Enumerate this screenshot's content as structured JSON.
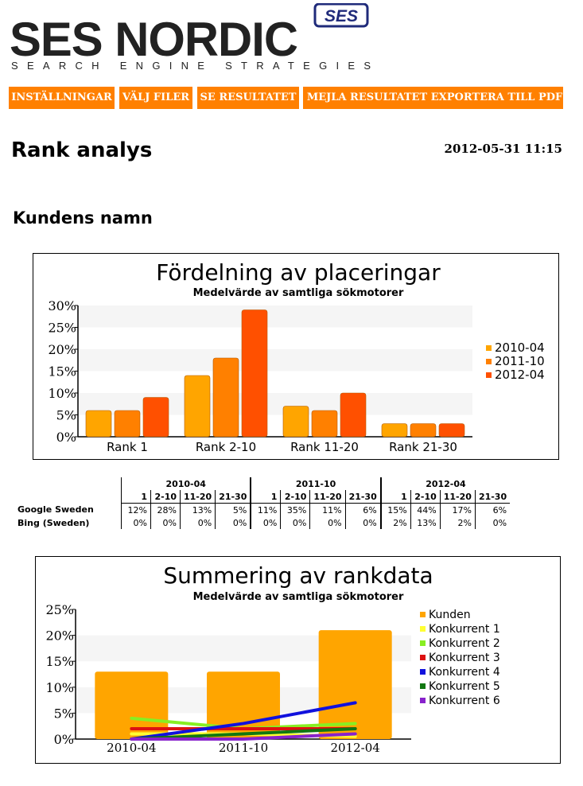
{
  "brand": {
    "name": "SES NORDIC",
    "tagline": "SEARCH ENGINE STRATEGIES",
    "badge": "SES",
    "dark_color": "#222222",
    "navy_color": "#1f2a7a"
  },
  "nav": {
    "color": "#ff8000",
    "items": [
      {
        "id": "settings",
        "label": "INSTÄLLNINGAR"
      },
      {
        "id": "select-files",
        "label": "VÄLJ FILER"
      },
      {
        "id": "view-result",
        "label": "SE RESULTATET"
      },
      {
        "id": "email-result",
        "label": "MEJLA RESULTATET"
      },
      {
        "id": "export-pdf",
        "label": "EXPORTERA TILL PDF"
      }
    ]
  },
  "page": {
    "title": "Rank analys",
    "timestamp": "2012-05-31 11:15",
    "customer_name": "Kundens namn"
  },
  "charts": {
    "distribution": {
      "type": "bar",
      "title": "Fördelning av placeringar",
      "subtitle": "Medelvärde av samtliga sökmotorer",
      "categories": [
        "Rank 1",
        "Rank 2-10",
        "Rank 11-20",
        "Rank 21-30"
      ],
      "series": [
        {
          "name": "2010-04",
          "color": "#ffa500",
          "values": [
            6,
            14,
            7,
            3
          ]
        },
        {
          "name": "2011-10",
          "color": "#ff8000",
          "values": [
            6,
            18,
            6,
            3
          ]
        },
        {
          "name": "2012-04",
          "color": "#ff5000",
          "values": [
            9,
            29,
            10,
            3
          ]
        }
      ],
      "yticks": [
        "0%",
        "5%",
        "10%",
        "15%",
        "20%",
        "25%",
        "30%"
      ],
      "ylim": [
        0,
        30
      ],
      "legend": "right"
    },
    "summary": {
      "type": "bar+line",
      "title": "Summering av rankdata",
      "subtitle": "Medelvärde av samtliga sökmotorer",
      "categories": [
        "2010-04",
        "2011-10",
        "2012-04"
      ],
      "bars": {
        "name": "Kunden",
        "color": "#ffa500",
        "values": [
          13,
          13,
          21
        ]
      },
      "lines": [
        {
          "name": "Konkurrent 1",
          "color": "#ffff33",
          "values": [
            1,
            1,
            0.5
          ]
        },
        {
          "name": "Konkurrent 2",
          "color": "#88ee22",
          "values": [
            4,
            2,
            3
          ]
        },
        {
          "name": "Konkurrent 3",
          "color": "#dd1111",
          "values": [
            2,
            2,
            2
          ]
        },
        {
          "name": "Konkurrent 4",
          "color": "#1111dd",
          "values": [
            0,
            3,
            7
          ]
        },
        {
          "name": "Konkurrent 5",
          "color": "#117711",
          "values": [
            0,
            1,
            2
          ]
        },
        {
          "name": "Konkurrent 6",
          "color": "#8822cc",
          "values": [
            0,
            0,
            1
          ]
        }
      ],
      "yticks": [
        "0%",
        "5%",
        "10%",
        "15%",
        "20%",
        "25%"
      ],
      "ylim": [
        0,
        25
      ],
      "legend": "right"
    }
  },
  "rank_table": {
    "periods": [
      "2010-04",
      "2011-10",
      "2012-04"
    ],
    "columns": [
      "1",
      "2-10",
      "11-20",
      "21-30"
    ],
    "rows": [
      {
        "engine": "Google Sweden",
        "values": [
          "12%",
          "28%",
          "13%",
          "5%",
          "11%",
          "35%",
          "11%",
          "6%",
          "15%",
          "44%",
          "17%",
          "6%"
        ]
      },
      {
        "engine": "Bing (Sweden)",
        "values": [
          "0%",
          "0%",
          "0%",
          "0%",
          "0%",
          "0%",
          "0%",
          "0%",
          "2%",
          "13%",
          "2%",
          "0%"
        ]
      }
    ]
  }
}
